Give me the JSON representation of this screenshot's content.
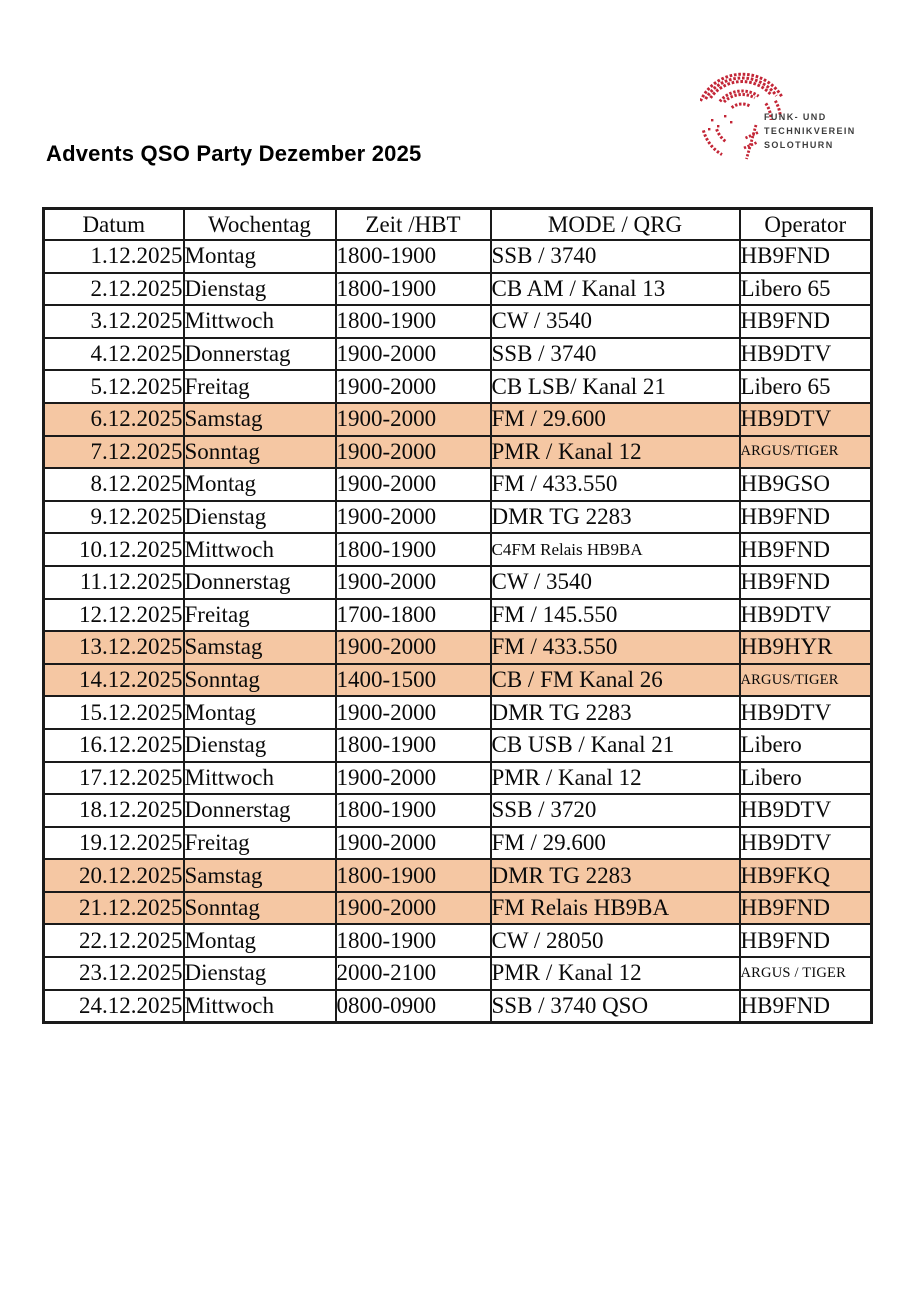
{
  "page": {
    "title": "Advents QSO Party Dezember 2025",
    "background_color": "#ffffff"
  },
  "logo": {
    "lines": [
      "FUNK- UND",
      "TECHNIKVEREIN",
      "SOLOTHURN"
    ],
    "mark_color": "#c32536",
    "text_color": "#3d3d3d"
  },
  "table": {
    "border_color": "#1a1a1a",
    "highlight_color": "#f5c7a3",
    "headers": [
      "Datum",
      "Wochentag",
      "Zeit /HBT",
      "MODE / QRG",
      "Operator"
    ],
    "rows": [
      {
        "datum": "1.12.2025",
        "wochentag": "Montag",
        "zeit": "1800-1900",
        "mode": "SSB / 3740",
        "operator": "HB9FND",
        "highlight": false,
        "mode_small": false,
        "operator_small": false
      },
      {
        "datum": "2.12.2025",
        "wochentag": "Dienstag",
        "zeit": "1800-1900",
        "mode": "CB AM / Kanal 13",
        "operator": "Libero 65",
        "highlight": false,
        "mode_small": false,
        "operator_small": false
      },
      {
        "datum": "3.12.2025",
        "wochentag": "Mittwoch",
        "zeit": "1800-1900",
        "mode": "CW / 3540",
        "operator": "HB9FND",
        "highlight": false,
        "mode_small": false,
        "operator_small": false
      },
      {
        "datum": "4.12.2025",
        "wochentag": "Donnerstag",
        "zeit": "1900-2000",
        "mode": "SSB / 3740",
        "operator": "HB9DTV",
        "highlight": false,
        "mode_small": false,
        "operator_small": false
      },
      {
        "datum": "5.12.2025",
        "wochentag": "Freitag",
        "zeit": "1900-2000",
        "mode": "CB LSB/ Kanal 21",
        "operator": "Libero 65",
        "highlight": false,
        "mode_small": false,
        "operator_small": false
      },
      {
        "datum": "6.12.2025",
        "wochentag": "Samstag",
        "zeit": "1900-2000",
        "mode": "FM / 29.600",
        "operator": "HB9DTV",
        "highlight": true,
        "mode_small": false,
        "operator_small": false
      },
      {
        "datum": "7.12.2025",
        "wochentag": "Sonntag",
        "zeit": "1900-2000",
        "mode": "PMR / Kanal 12",
        "operator": "ARGUS/TIGER",
        "highlight": true,
        "mode_small": false,
        "operator_small": true
      },
      {
        "datum": "8.12.2025",
        "wochentag": "Montag",
        "zeit": "1900-2000",
        "mode": "FM / 433.550",
        "operator": "HB9GSO",
        "highlight": false,
        "mode_small": false,
        "operator_small": false
      },
      {
        "datum": "9.12.2025",
        "wochentag": "Dienstag",
        "zeit": "1900-2000",
        "mode": "DMR TG 2283",
        "operator": "HB9FND",
        "highlight": false,
        "mode_small": false,
        "operator_small": false
      },
      {
        "datum": "10.12.2025",
        "wochentag": "Mittwoch",
        "zeit": "1800-1900",
        "mode": "C4FM Relais HB9BA",
        "operator": "HB9FND",
        "highlight": false,
        "mode_small": true,
        "operator_small": false
      },
      {
        "datum": "11.12.2025",
        "wochentag": "Donnerstag",
        "zeit": "1900-2000",
        "mode": "CW / 3540",
        "operator": "HB9FND",
        "highlight": false,
        "mode_small": false,
        "operator_small": false
      },
      {
        "datum": "12.12.2025",
        "wochentag": "Freitag",
        "zeit": "1700-1800",
        "mode": "FM / 145.550",
        "operator": "HB9DTV",
        "highlight": false,
        "mode_small": false,
        "operator_small": false
      },
      {
        "datum": "13.12.2025",
        "wochentag": "Samstag",
        "zeit": "1900-2000",
        "mode": "FM / 433.550",
        "operator": "HB9HYR",
        "highlight": true,
        "mode_small": false,
        "operator_small": false
      },
      {
        "datum": "14.12.2025",
        "wochentag": "Sonntag",
        "zeit": "1400-1500",
        "mode": "CB / FM Kanal 26",
        "operator": "ARGUS/TIGER",
        "highlight": true,
        "mode_small": false,
        "operator_small": true
      },
      {
        "datum": "15.12.2025",
        "wochentag": "Montag",
        "zeit": "1900-2000",
        "mode": "DMR TG 2283",
        "operator": "HB9DTV",
        "highlight": false,
        "mode_small": false,
        "operator_small": false
      },
      {
        "datum": "16.12.2025",
        "wochentag": "Dienstag",
        "zeit": "1800-1900",
        "mode": "CB USB / Kanal 21",
        "operator": "Libero",
        "highlight": false,
        "mode_small": false,
        "operator_small": false
      },
      {
        "datum": "17.12.2025",
        "wochentag": "Mittwoch",
        "zeit": "1900-2000",
        "mode": "PMR / Kanal 12",
        "operator": "Libero",
        "highlight": false,
        "mode_small": false,
        "operator_small": false
      },
      {
        "datum": "18.12.2025",
        "wochentag": "Donnerstag",
        "zeit": "1800-1900",
        "mode": "SSB / 3720",
        "operator": "HB9DTV",
        "highlight": false,
        "mode_small": false,
        "operator_small": false
      },
      {
        "datum": "19.12.2025",
        "wochentag": "Freitag",
        "zeit": "1900-2000",
        "mode": "FM / 29.600",
        "operator": "HB9DTV",
        "highlight": false,
        "mode_small": false,
        "operator_small": false
      },
      {
        "datum": "20.12.2025",
        "wochentag": "Samstag",
        "zeit": "1800-1900",
        "mode": "DMR TG 2283",
        "operator": "HB9FKQ",
        "highlight": true,
        "mode_small": false,
        "operator_small": false
      },
      {
        "datum": "21.12.2025",
        "wochentag": "Sonntag",
        "zeit": "1900-2000",
        "mode": "FM Relais HB9BA",
        "operator": "HB9FND",
        "highlight": true,
        "mode_small": false,
        "operator_small": false
      },
      {
        "datum": "22.12.2025",
        "wochentag": "Montag",
        "zeit": "1800-1900",
        "mode": "CW / 28050",
        "operator": "HB9FND",
        "highlight": false,
        "mode_small": false,
        "operator_small": false
      },
      {
        "datum": "23.12.2025",
        "wochentag": "Dienstag",
        "zeit": "2000-2100",
        "mode": "PMR / Kanal 12",
        "operator": "ARGUS / TIGER",
        "highlight": false,
        "mode_small": false,
        "operator_small": true
      },
      {
        "datum": "24.12.2025",
        "wochentag": "Mittwoch",
        "zeit": "0800-0900",
        "mode": "SSB / 3740 QSO",
        "operator": "HB9FND",
        "highlight": false,
        "mode_small": false,
        "operator_small": false
      }
    ]
  }
}
